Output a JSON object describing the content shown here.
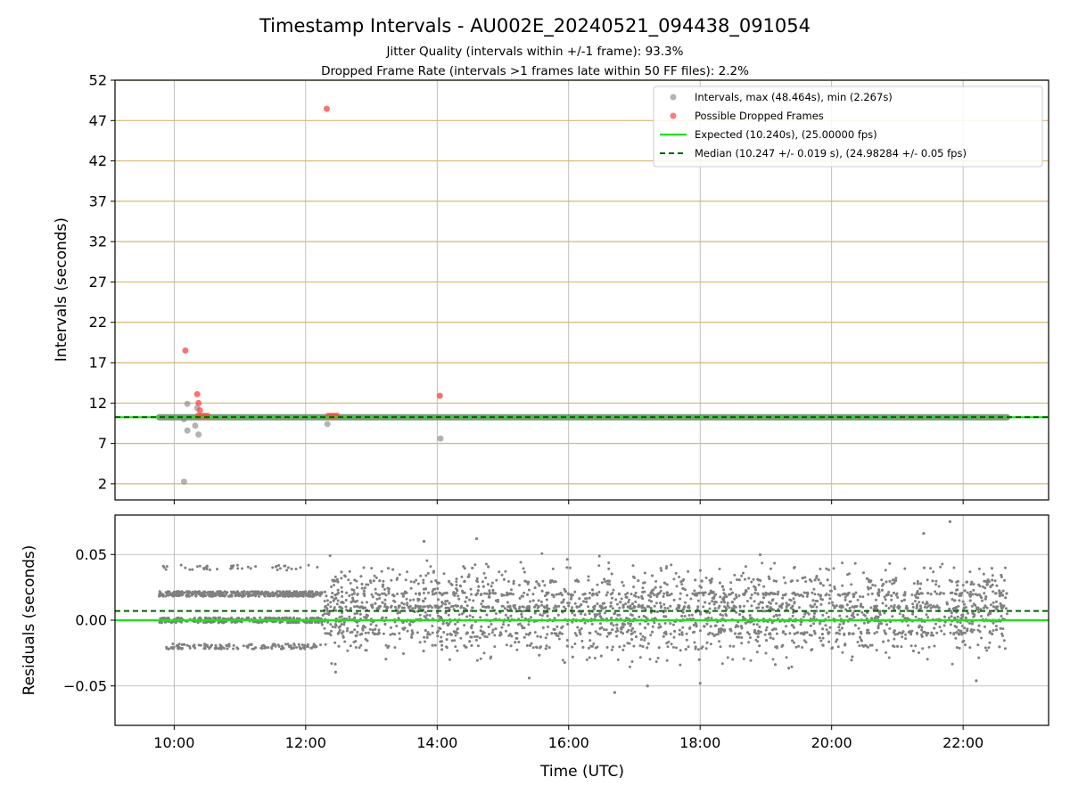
{
  "chart_data": [
    {
      "type": "scatter",
      "title": "Timestamp Intervals - AU002E_20240521_094438_091054",
      "subtitle_lines": [
        "Jitter Quality (intervals within +/-1 frame): 93.3%",
        "Dropped Frame Rate (intervals >1 frames late within 50 FF files): 2.2%"
      ],
      "ylabel": "Intervals (seconds)",
      "xlabel": "",
      "xlim_hours": [
        9.1,
        23.3
      ],
      "ylim": [
        0,
        52
      ],
      "yticks": [
        2,
        7,
        12,
        17,
        22,
        27,
        32,
        37,
        42,
        47,
        52
      ],
      "ytick_labels": [
        "2",
        "7",
        "12",
        "17",
        "22",
        "27",
        "32",
        "37",
        "42",
        "47",
        "52"
      ],
      "xticks_hours": [
        10,
        12,
        14,
        16,
        18,
        20,
        22
      ],
      "horizontal_grid": "goldenrod",
      "vertical_grid": "on",
      "legend_position": "top-right",
      "legend": [
        "Intervals, max (48.464s), min (2.267s)",
        "Possible Dropped Frames",
        "Expected (10.240s), (25.00000 fps)",
        "Median (10.247 +/- 0.019 s), (24.98284 +/- 0.05 fps)"
      ],
      "expected_interval": 10.24,
      "median_interval": 10.247,
      "interval_band": {
        "x_start_hours": 9.77,
        "x_end_hours": 22.67,
        "y": 10.24
      },
      "intervals_outliers": [
        {
          "x_hours": 10.15,
          "y": 2.27
        },
        {
          "x_hours": 10.2,
          "y": 8.6
        },
        {
          "x_hours": 10.2,
          "y": 11.9
        },
        {
          "x_hours": 10.32,
          "y": 9.2
        },
        {
          "x_hours": 10.37,
          "y": 8.1
        },
        {
          "x_hours": 10.35,
          "y": 11.4
        },
        {
          "x_hours": 10.15,
          "y": 10.0
        },
        {
          "x_hours": 12.33,
          "y": 9.4
        },
        {
          "x_hours": 14.05,
          "y": 7.6
        }
      ],
      "dropped_frames": [
        {
          "x_hours": 10.17,
          "y": 18.5
        },
        {
          "x_hours": 10.35,
          "y": 13.1
        },
        {
          "x_hours": 10.37,
          "y": 12.0
        },
        {
          "x_hours": 10.39,
          "y": 11.1
        },
        {
          "x_hours": 10.36,
          "y": 10.4
        },
        {
          "x_hours": 10.39,
          "y": 10.4
        },
        {
          "x_hours": 10.42,
          "y": 10.4
        },
        {
          "x_hours": 10.45,
          "y": 10.4
        },
        {
          "x_hours": 10.48,
          "y": 10.4
        },
        {
          "x_hours": 10.51,
          "y": 10.4
        },
        {
          "x_hours": 12.32,
          "y": 48.46
        },
        {
          "x_hours": 12.34,
          "y": 10.4
        },
        {
          "x_hours": 12.37,
          "y": 10.4
        },
        {
          "x_hours": 12.4,
          "y": 10.4
        },
        {
          "x_hours": 12.43,
          "y": 10.4
        },
        {
          "x_hours": 12.46,
          "y": 10.4
        },
        {
          "x_hours": 12.48,
          "y": 10.4
        },
        {
          "x_hours": 14.04,
          "y": 12.9
        }
      ]
    },
    {
      "type": "scatter",
      "title": "",
      "ylabel": "Residuals (seconds)",
      "xlabel": "Time (UTC)",
      "xlim_hours": [
        9.1,
        23.3
      ],
      "ylim": [
        -0.08,
        0.08
      ],
      "yticks": [
        -0.05,
        0.0,
        0.05
      ],
      "ytick_labels": [
        "−0.05",
        "0.00",
        "0.05"
      ],
      "xticks_hours": [
        10,
        12,
        14,
        16,
        18,
        20,
        22
      ],
      "xtick_labels": [
        "10:00",
        "12:00",
        "14:00",
        "16:00",
        "18:00",
        "20:00",
        "22:00"
      ],
      "grid": "on",
      "expected_residual": 0.0,
      "median_residual": 0.007,
      "residual_range_hours": [
        9.77,
        22.67
      ],
      "residual_pattern": {
        "early_end_hours": 12.25,
        "early_levels": [
          0.02,
          0.0,
          -0.02,
          0.04
        ],
        "late_spread": 0.025,
        "late_max": 0.075,
        "late_min": -0.055
      },
      "residual_outliers": [
        {
          "x_hours": 21.8,
          "y": 0.075
        },
        {
          "x_hours": 21.4,
          "y": 0.066
        },
        {
          "x_hours": 14.6,
          "y": 0.062
        },
        {
          "x_hours": 16.7,
          "y": -0.055
        },
        {
          "x_hours": 17.2,
          "y": -0.05
        },
        {
          "x_hours": 18.0,
          "y": -0.048
        },
        {
          "x_hours": 22.2,
          "y": -0.046
        },
        {
          "x_hours": 15.4,
          "y": -0.044
        },
        {
          "x_hours": 13.8,
          "y": 0.06
        }
      ],
      "series_colors": {
        "intervals": "#808080",
        "dropped": "#ff4d4d",
        "expected": "#14e814",
        "median": "#006400",
        "grid_horizontal_top": "#d4b96c",
        "grid": "#b0b0b0"
      }
    }
  ]
}
